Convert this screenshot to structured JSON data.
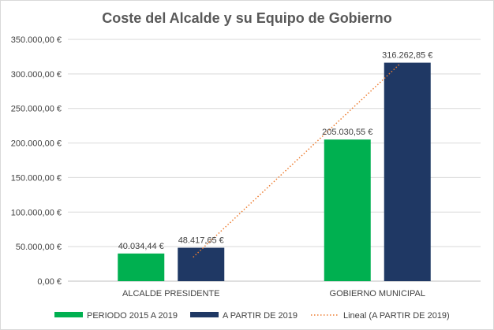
{
  "chart_data": {
    "type": "bar",
    "title": "Coste del Alcalde y su Equipo de Gobierno",
    "categories": [
      "ALCALDE PRESIDENTE",
      "GOBIERNO MUNICIPAL"
    ],
    "series": [
      {
        "name": "PERIODO 2015 A 2019",
        "values": [
          40034.44,
          205030.55
        ],
        "labels": [
          "40.034,44 €",
          "205.030,55 €"
        ],
        "color": "#00b050"
      },
      {
        "name": "A PARTIR DE 2019",
        "values": [
          48417.65,
          316262.85
        ],
        "labels": [
          "48.417,65 €",
          "316.262,85 €"
        ],
        "color": "#1f3864"
      }
    ],
    "trendline": {
      "name": "Lineal (A PARTIR DE 2019)",
      "series_index": 1,
      "color": "#ed7d31"
    },
    "ylim": [
      0,
      350000
    ],
    "yticks": [
      0,
      50000,
      100000,
      150000,
      200000,
      250000,
      300000,
      350000
    ],
    "ytick_labels": [
      "0,00 €",
      "50.000,00 €",
      "100.000,00 €",
      "150.000,00 €",
      "200.000,00 €",
      "250.000,00 €",
      "300.000,00 €",
      "350.000,00 €"
    ],
    "grid": true,
    "legend_position": "bottom"
  }
}
